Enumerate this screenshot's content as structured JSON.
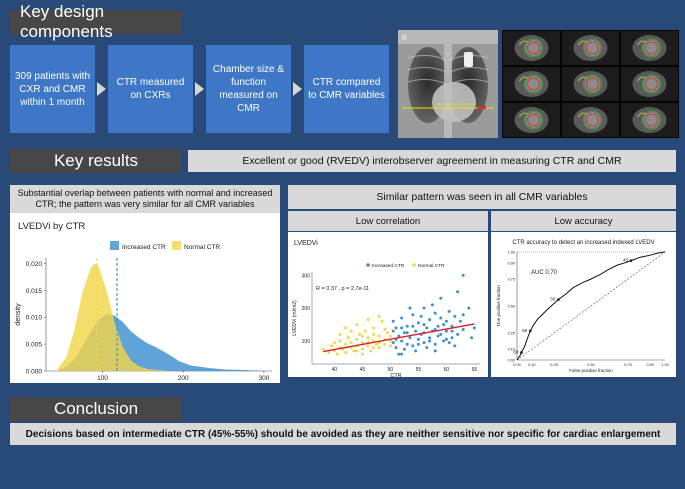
{
  "sections": {
    "design_title": "Key design components",
    "results_title": "Key results",
    "conclusion_title": "Conclusion"
  },
  "flow": [
    "309 patients with CXR and CMR within 1 month",
    "CTR measured on CXRs",
    "Chamber size & function measured on CMR",
    "CTR compared to CMR variables"
  ],
  "results": {
    "agreement": "Excellent or good (RVEDV) interobserver agreement in measuring CTR and CMR",
    "overlap": "Substantial overlap between patients with normal and increased CTR; the pattern was very similar for all CMR variables",
    "pattern": "Similar pattern was seen in all CMR variables",
    "low_correlation": "Low correlation",
    "low_accuracy": "Low accuracy"
  },
  "conclusion": "Decisions based on intermediate CTR (45%-55%) should be avoided as they are neither sensitive nor specific for cardiac enlargement",
  "images": {
    "xray_label": "R"
  },
  "colors": {
    "increased": "#3c8fd0",
    "normal": "#f2d64a",
    "fit": "#d42020",
    "box": "#3d77c6",
    "background": "#294a79"
  },
  "chart_data": [
    {
      "type": "area",
      "title": "LVEDVi by CTR",
      "xlabel": "LVEDVi (ml/m2)",
      "ylabel": "density",
      "xlim": [
        30,
        310
      ],
      "ylim": [
        0,
        0.021
      ],
      "x_ticks": [
        100,
        200,
        300
      ],
      "y_ticks": [
        0.0,
        0.005,
        0.01,
        0.015,
        0.02
      ],
      "y_tick_labels": [
        "0.000",
        "0.005",
        "0.010",
        "0.015",
        "0.020"
      ],
      "legend_placement": "top",
      "series": [
        {
          "name": "Increased CTR",
          "color": "#3c8fd0",
          "mean_line": 118,
          "x": [
            45,
            55,
            65,
            75,
            85,
            95,
            105,
            115,
            125,
            135,
            145,
            155,
            165,
            175,
            185,
            195,
            210,
            230,
            250,
            270,
            290,
            300
          ],
          "y": [
            0.0002,
            0.0008,
            0.0022,
            0.0045,
            0.0072,
            0.0095,
            0.0106,
            0.0103,
            0.0091,
            0.0074,
            0.0062,
            0.0052,
            0.0045,
            0.0037,
            0.0028,
            0.0018,
            0.001,
            0.0006,
            0.0003,
            0.0002,
            0.0001,
            0.0001
          ]
        },
        {
          "name": "Normal CTR",
          "color": "#f2d64a",
          "mean_line": 93,
          "x": [
            45,
            55,
            65,
            75,
            85,
            90,
            95,
            105,
            115,
            125,
            135,
            145,
            155,
            165,
            175,
            185,
            195
          ],
          "y": [
            0.0005,
            0.0025,
            0.0075,
            0.0145,
            0.019,
            0.02,
            0.0195,
            0.015,
            0.009,
            0.0045,
            0.002,
            0.0009,
            0.0004,
            0.0002,
            0.0001,
            0.0,
            0.0
          ]
        }
      ]
    },
    {
      "type": "scatter",
      "title": "LVEDVi",
      "xlabel": "CTR",
      "ylabel": "LVEDVi (ml/m2)",
      "xlim": [
        36,
        66
      ],
      "ylim": [
        30,
        310
      ],
      "x_ticks": [
        40,
        45,
        50,
        55,
        60,
        65
      ],
      "y_ticks": [
        100,
        200,
        300
      ],
      "annotation": "R = 0.37 , p = 2.7e-11",
      "legend_placement": "top",
      "fit_line": {
        "x": [
          38,
          65
        ],
        "y": [
          68,
          152
        ]
      },
      "series": [
        {
          "name": "Increased CTR",
          "color": "#3c8fd0",
          "points": [
            [
              50.5,
              95
            ],
            [
              51,
              140
            ],
            [
              51,
              80
            ],
            [
              51.5,
              115
            ],
            [
              52,
              170
            ],
            [
              52,
              100
            ],
            [
              52.5,
              125
            ],
            [
              53,
              90
            ],
            [
              53,
              145
            ],
            [
              53.5,
              110
            ],
            [
              54,
              180
            ],
            [
              54,
              85
            ],
            [
              54.5,
              130
            ],
            [
              55,
              105
            ],
            [
              55,
              155
            ],
            [
              55.5,
              120
            ],
            [
              56,
              95
            ],
            [
              56,
              200
            ],
            [
              56.5,
              140
            ],
            [
              57,
              110
            ],
            [
              57,
              165
            ],
            [
              57.5,
              130
            ],
            [
              58,
              90
            ],
            [
              58,
              185
            ],
            [
              58.5,
              145
            ],
            [
              59,
              120
            ],
            [
              59,
              230
            ],
            [
              59.5,
              100
            ],
            [
              60,
              160
            ],
            [
              60,
              130
            ],
            [
              60.5,
              190
            ],
            [
              61,
              110
            ],
            [
              61,
              145
            ],
            [
              61.5,
              175
            ],
            [
              62,
              250
            ],
            [
              62,
              120
            ],
            [
              62.5,
              160
            ],
            [
              63,
              135
            ],
            [
              63,
              300
            ],
            [
              64,
              200
            ],
            [
              64.5,
              110
            ],
            [
              65,
              140
            ],
            [
              50.5,
              130
            ],
            [
              51.5,
              60
            ],
            [
              52.5,
              75
            ],
            [
              53.5,
              200
            ],
            [
              54.5,
              70
            ],
            [
              55.5,
              175
            ],
            [
              56.5,
              80
            ],
            [
              57.5,
              210
            ],
            [
              58.5,
              115
            ],
            [
              59.5,
              150
            ],
            [
              60.5,
              95
            ],
            [
              61.5,
              85
            ],
            [
              50.5,
              160
            ],
            [
              52,
              60
            ],
            [
              54,
              145
            ],
            [
              56,
              125
            ],
            [
              58,
              135
            ],
            [
              60,
              105
            ],
            [
              57,
              100
            ],
            [
              55,
              90
            ],
            [
              53,
              125
            ],
            [
              51,
              105
            ],
            [
              59,
              170
            ],
            [
              61,
              130
            ],
            [
              63,
              180
            ],
            [
              56,
              150
            ],
            [
              58,
              70
            ],
            [
              52,
              140
            ]
          ]
        },
        {
          "name": "Normal CTR",
          "color": "#f2d64a",
          "points": [
            [
              38,
              75
            ],
            [
              39,
              65
            ],
            [
              39.5,
              85
            ],
            [
              40,
              70
            ],
            [
              40,
              95
            ],
            [
              40.5,
              60
            ],
            [
              41,
              80
            ],
            [
              41,
              100
            ],
            [
              41.5,
              75
            ],
            [
              42,
              90
            ],
            [
              42,
              65
            ],
            [
              42.5,
              110
            ],
            [
              43,
              80
            ],
            [
              43,
              95
            ],
            [
              43.5,
              70
            ],
            [
              44,
              105
            ],
            [
              44,
              85
            ],
            [
              44.5,
              120
            ],
            [
              45,
              75
            ],
            [
              45,
              95
            ],
            [
              45.5,
              130
            ],
            [
              46,
              85
            ],
            [
              46,
              110
            ],
            [
              46.5,
              70
            ],
            [
              47,
              100
            ],
            [
              47,
              140
            ],
            [
              47.5,
              90
            ],
            [
              48,
              115
            ],
            [
              48,
              80
            ],
            [
              48.5,
              160
            ],
            [
              49,
              105
            ],
            [
              49,
              90
            ],
            [
              49.5,
              125
            ],
            [
              50,
              100
            ],
            [
              50,
              85
            ],
            [
              42,
              140
            ],
            [
              44,
              150
            ],
            [
              46,
              165
            ],
            [
              48,
              175
            ],
            [
              45,
              115
            ],
            [
              47,
              120
            ],
            [
              43,
              130
            ],
            [
              49,
              135
            ],
            [
              41,
              120
            ],
            [
              46,
              95
            ],
            [
              44,
              70
            ],
            [
              48,
              95
            ],
            [
              50,
              115
            ],
            [
              47,
              80
            ],
            [
              45,
              60
            ]
          ]
        }
      ]
    },
    {
      "type": "line",
      "title": "CTR accuracy to detect an increased indexed LVEDV",
      "xlabel": "False positive fraction",
      "ylabel": "True positive fraction",
      "xlim": [
        0,
        1
      ],
      "ylim": [
        0,
        1
      ],
      "x_ticks": [
        0.0,
        0.1,
        0.25,
        0.5,
        0.75,
        0.9,
        1.0
      ],
      "x_tick_labels": [
        "0.00",
        "0.10",
        "0.25",
        "0.50",
        "0.75",
        "0.90",
        "1.00"
      ],
      "y_ticks": [
        0.0,
        0.1,
        0.25,
        0.5,
        0.75,
        0.9,
        1.0
      ],
      "y_tick_labels": [
        "0.00",
        "0.10",
        "0.25",
        "0.50",
        "0.75",
        "0.90",
        "1.00"
      ],
      "annotation": "AUC 0.70",
      "point_labels": [
        {
          "label": "60",
          "x": 0.03,
          "y": 0.07
        },
        {
          "label": "55",
          "x": 0.09,
          "y": 0.27
        },
        {
          "label": "50",
          "x": 0.28,
          "y": 0.56
        },
        {
          "label": "45",
          "x": 0.77,
          "y": 0.92
        }
      ],
      "series": [
        {
          "name": "ROC",
          "color": "#111111",
          "x": [
            0,
            0.02,
            0.03,
            0.05,
            0.07,
            0.09,
            0.11,
            0.14,
            0.17,
            0.2,
            0.24,
            0.28,
            0.33,
            0.38,
            0.45,
            0.5,
            0.56,
            0.62,
            0.68,
            0.73,
            0.77,
            0.83,
            0.9,
            0.95,
            1.0
          ],
          "y": [
            0,
            0.04,
            0.07,
            0.12,
            0.2,
            0.27,
            0.32,
            0.38,
            0.42,
            0.46,
            0.51,
            0.56,
            0.61,
            0.67,
            0.72,
            0.75,
            0.79,
            0.84,
            0.88,
            0.9,
            0.92,
            0.95,
            0.97,
            0.99,
            1.0
          ]
        }
      ]
    }
  ]
}
